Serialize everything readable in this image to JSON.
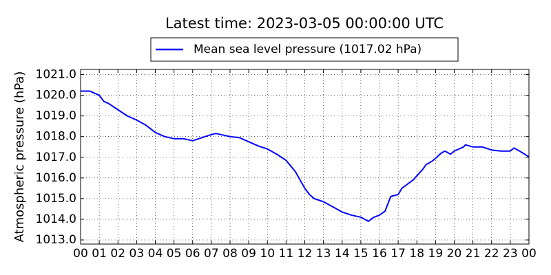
{
  "chart_data": {
    "type": "line",
    "title": "Latest time: 2023-03-05 00:00:00 UTC",
    "y_label": "Atmospheric pressure (hPa)",
    "grid": true,
    "legend": "upper center",
    "x": [
      0,
      0.5,
      1.0,
      1.25,
      1.5,
      2.0,
      2.5,
      3.0,
      3.5,
      4.0,
      4.5,
      5.0,
      5.5,
      6.0,
      6.5,
      7.0,
      7.25,
      7.5,
      8.0,
      8.5,
      9.0,
      9.5,
      10.0,
      10.5,
      11.0,
      11.5,
      12.0,
      12.25,
      12.5,
      13.0,
      13.5,
      14.0,
      14.5,
      15.0,
      15.4,
      15.7,
      16.0,
      16.3,
      16.6,
      17.0,
      17.2,
      17.5,
      17.8,
      18.0,
      18.3,
      18.5,
      18.8,
      19.0,
      19.3,
      19.5,
      19.8,
      20.0,
      20.5,
      20.6,
      21.0,
      21.5,
      22.0,
      22.5,
      23.0,
      23.2,
      23.5,
      24.0
    ],
    "series": [
      {
        "name": "Mean sea level pressure (1017.02 hPa)",
        "color": "#0000ff",
        "values": [
          1020.2,
          1020.2,
          1020.0,
          1019.7,
          1019.6,
          1019.3,
          1019.0,
          1018.8,
          1018.55,
          1018.2,
          1018.0,
          1017.9,
          1017.9,
          1017.8,
          1017.95,
          1018.1,
          1018.15,
          1018.1,
          1018.0,
          1017.95,
          1017.75,
          1017.55,
          1017.4,
          1017.15,
          1016.85,
          1016.3,
          1015.5,
          1015.2,
          1015.0,
          1014.85,
          1014.6,
          1014.35,
          1014.2,
          1014.1,
          1013.9,
          1014.1,
          1014.2,
          1014.4,
          1015.1,
          1015.2,
          1015.5,
          1015.7,
          1015.9,
          1016.1,
          1016.4,
          1016.65,
          1016.8,
          1016.95,
          1017.2,
          1017.3,
          1017.15,
          1017.3,
          1017.5,
          1017.6,
          1017.5,
          1017.5,
          1017.35,
          1017.3,
          1017.3,
          1017.45,
          1017.3,
          1017.02
        ]
      }
    ],
    "xlim": [
      0,
      24
    ],
    "xticks": [
      {
        "value": 0,
        "label": "00"
      },
      {
        "value": 1,
        "label": "01"
      },
      {
        "value": 2,
        "label": "02"
      },
      {
        "value": 3,
        "label": "03"
      },
      {
        "value": 4,
        "label": "04"
      },
      {
        "value": 5,
        "label": "05"
      },
      {
        "value": 6,
        "label": "06"
      },
      {
        "value": 7,
        "label": "07"
      },
      {
        "value": 8,
        "label": "08"
      },
      {
        "value": 9,
        "label": "09"
      },
      {
        "value": 10,
        "label": "10"
      },
      {
        "value": 11,
        "label": "11"
      },
      {
        "value": 12,
        "label": "12"
      },
      {
        "value": 13,
        "label": "13"
      },
      {
        "value": 14,
        "label": "14"
      },
      {
        "value": 15,
        "label": "15"
      },
      {
        "value": 16,
        "label": "16"
      },
      {
        "value": 17,
        "label": "17"
      },
      {
        "value": 18,
        "label": "18"
      },
      {
        "value": 19,
        "label": "19"
      },
      {
        "value": 20,
        "label": "20"
      },
      {
        "value": 21,
        "label": "21"
      },
      {
        "value": 22,
        "label": "22"
      },
      {
        "value": 23,
        "label": "23"
      },
      {
        "value": 24,
        "label": "00"
      }
    ],
    "ylim": [
      1012.8,
      1021.25
    ],
    "yticks": [
      {
        "value": 1013,
        "label": "1013.0"
      },
      {
        "value": 1014,
        "label": "1014.0"
      },
      {
        "value": 1015,
        "label": "1015.0"
      },
      {
        "value": 1016,
        "label": "1016.0"
      },
      {
        "value": 1017,
        "label": "1017.0"
      },
      {
        "value": 1018,
        "label": "1018.0"
      },
      {
        "value": 1019,
        "label": "1019.0"
      },
      {
        "value": 1020,
        "label": "1020.0"
      },
      {
        "value": 1021,
        "label": "1021.0"
      }
    ]
  }
}
